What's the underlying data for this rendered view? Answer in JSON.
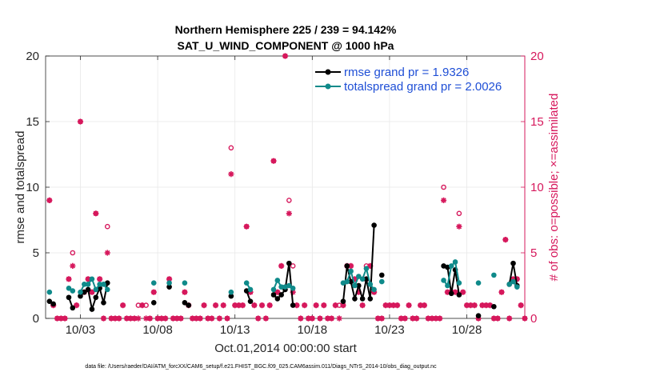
{
  "chart_data": {
    "type": "line",
    "title_line1": "Northern Hemisphere 225 / 239 = 94.142%",
    "title_line2": "SAT_U_WIND_COMPONENT @ 1000 hPa",
    "ylabel": "rmse and totalspread",
    "ylabel_right": "# of obs: o=possible; ×=assimilated",
    "xlabel": "Oct.01,2014 00:00:00 start",
    "footer": "data file: /Users/raeder/DAI/ATM_forcXX/CAM6_setup/f.e21.FHIST_BGC.f09_025.CAM6assim.011/Diags_NTrS_2014-10/obs_diag_output.nc",
    "xlim": [
      0.75,
      31.75
    ],
    "ylim": [
      0,
      20
    ],
    "ylim_right": [
      0,
      20
    ],
    "xticks": [
      3,
      8,
      13,
      18,
      23,
      28
    ],
    "xtick_labels": [
      "10/03",
      "10/08",
      "10/13",
      "10/18",
      "10/23",
      "10/28"
    ],
    "yticks": [
      0,
      5,
      10,
      15,
      20
    ],
    "ytick_labels": [
      "0",
      "5",
      "10",
      "15",
      "20"
    ],
    "ytick_labels_right": [
      "0",
      "5",
      "10",
      "15",
      "20"
    ],
    "colors": {
      "rmse": "#000000",
      "spread": "#0f8a8a",
      "obs": "#d6185c",
      "legend_text": "#1f4fd6",
      "grid": "#e8e8e8"
    },
    "series": [
      {
        "name": "rmse",
        "legend": "rmse grand pr = 1.9326",
        "segments": [
          [
            [
              1.0,
              1.3
            ],
            [
              1.25,
              1.1
            ]
          ],
          [
            [
              2.25,
              1.6
            ],
            [
              2.5,
              0.8
            ]
          ],
          [
            [
              3.0,
              1.7
            ],
            [
              3.25,
              2.0
            ],
            [
              3.5,
              2.2
            ],
            [
              3.75,
              0.7
            ],
            [
              4.0,
              1.6
            ],
            [
              4.25,
              2.3
            ],
            [
              4.5,
              1.2
            ],
            [
              4.75,
              2.7
            ]
          ],
          [
            [
              7.75,
              1.2
            ]
          ],
          [
            [
              8.75,
              2.4
            ]
          ],
          [
            [
              9.75,
              1.2
            ],
            [
              10.0,
              1.0
            ]
          ],
          [
            [
              12.75,
              1.7
            ]
          ],
          [
            [
              13.75,
              2.1
            ],
            [
              14.0,
              1.3
            ]
          ],
          [
            [
              15.5,
              1.8
            ],
            [
              15.75,
              1.5
            ],
            [
              16.0,
              1.8
            ],
            [
              16.25,
              2.2
            ],
            [
              16.5,
              4.2
            ],
            [
              16.75,
              1.0
            ]
          ],
          [
            [
              20.0,
              1.3
            ],
            [
              20.25,
              4.0
            ],
            [
              20.5,
              2.8
            ],
            [
              20.75,
              1.5
            ],
            [
              21.0,
              2.5
            ],
            [
              21.25,
              1.5
            ],
            [
              21.5,
              3.0
            ],
            [
              21.75,
              1.5
            ],
            [
              22.0,
              7.1
            ]
          ],
          [
            [
              22.5,
              3.3
            ]
          ],
          [
            [
              26.5,
              4.0
            ],
            [
              26.75,
              3.9
            ],
            [
              27.0,
              1.9
            ],
            [
              27.25,
              3.7
            ],
            [
              27.5,
              1.8
            ]
          ],
          [
            [
              28.75,
              0.2
            ]
          ],
          [
            [
              29.75,
              0.9
            ]
          ],
          [
            [
              30.75,
              2.6
            ],
            [
              31.0,
              4.2
            ],
            [
              31.25,
              2.5
            ]
          ]
        ]
      },
      {
        "name": "totalspread",
        "legend": "totalspread grand pr = 2.0026",
        "segments": [
          [
            [
              1.0,
              2.0
            ]
          ],
          [
            [
              2.25,
              2.3
            ],
            [
              2.5,
              2.1
            ]
          ],
          [
            [
              3.0,
              2.0
            ],
            [
              3.25,
              2.6
            ],
            [
              3.5,
              2.6
            ],
            [
              3.75,
              3.0
            ],
            [
              4.0,
              2.2
            ],
            [
              4.25,
              2.6
            ],
            [
              4.5,
              2.6
            ],
            [
              4.75,
              2.2
            ]
          ],
          [
            [
              7.75,
              2.7
            ]
          ],
          [
            [
              8.75,
              2.7
            ]
          ],
          [
            [
              9.75,
              2.7
            ]
          ],
          [
            [
              12.75,
              2.0
            ]
          ],
          [
            [
              13.75,
              2.7
            ],
            [
              14.0,
              2.2
            ]
          ],
          [
            [
              15.5,
              2.2
            ],
            [
              15.75,
              2.9
            ],
            [
              16.0,
              2.4
            ],
            [
              16.25,
              2.4
            ],
            [
              16.5,
              2.5
            ],
            [
              16.75,
              2.3
            ]
          ],
          [
            [
              20.0,
              2.7
            ],
            [
              20.25,
              2.8
            ],
            [
              20.5,
              3.6
            ],
            [
              20.75,
              2.5
            ],
            [
              21.0,
              3.2
            ],
            [
              21.25,
              3.0
            ],
            [
              21.5,
              3.8
            ],
            [
              21.75,
              2.6
            ],
            [
              22.0,
              2.2
            ]
          ],
          [
            [
              22.5,
              2.8
            ]
          ],
          [
            [
              26.5,
              2.9
            ],
            [
              26.75,
              2.5
            ],
            [
              27.0,
              4.0
            ],
            [
              27.25,
              4.3
            ],
            [
              27.5,
              2.7
            ]
          ],
          [
            [
              28.75,
              2.7
            ]
          ],
          [
            [
              29.75,
              3.3
            ]
          ],
          [
            [
              30.75,
              2.6
            ],
            [
              31.0,
              2.8
            ],
            [
              31.25,
              2.4
            ]
          ]
        ]
      }
    ],
    "possible": [
      [
        1.0,
        9.0
      ],
      [
        1.25,
        1.0
      ],
      [
        1.5,
        0.0
      ],
      [
        1.75,
        0.0
      ],
      [
        2.0,
        0.0
      ],
      [
        2.25,
        3.0
      ],
      [
        2.5,
        5.0
      ],
      [
        2.75,
        1.0
      ],
      [
        3.0,
        15.0
      ],
      [
        3.25,
        2.0
      ],
      [
        3.5,
        3.0
      ],
      [
        3.75,
        2.0
      ],
      [
        4.0,
        8.0
      ],
      [
        4.25,
        3.0
      ],
      [
        4.5,
        0.0
      ],
      [
        4.75,
        7.0
      ],
      [
        5.0,
        0.0
      ],
      [
        5.25,
        0.0
      ],
      [
        5.5,
        0.0
      ],
      [
        5.75,
        1.0
      ],
      [
        6.0,
        0.0
      ],
      [
        6.25,
        0.0
      ],
      [
        6.5,
        0.0
      ],
      [
        6.75,
        1.0
      ],
      [
        7.0,
        1.0
      ],
      [
        7.25,
        1.0
      ],
      [
        7.5,
        0.0
      ],
      [
        7.75,
        2.0
      ],
      [
        8.0,
        0.0
      ],
      [
        8.25,
        0.0
      ],
      [
        8.5,
        0.0
      ],
      [
        8.75,
        3.0
      ],
      [
        9.0,
        0.0
      ],
      [
        9.25,
        0.0
      ],
      [
        9.5,
        0.0
      ],
      [
        9.75,
        2.0
      ],
      [
        10.0,
        1.0
      ],
      [
        10.25,
        0.0
      ],
      [
        10.5,
        0.0
      ],
      [
        10.75,
        0.0
      ],
      [
        11.0,
        1.0
      ],
      [
        11.25,
        0.0
      ],
      [
        11.5,
        0.0
      ],
      [
        11.75,
        1.0
      ],
      [
        12.0,
        0.0
      ],
      [
        12.25,
        1.0
      ],
      [
        12.5,
        0.0
      ],
      [
        12.75,
        13.0
      ],
      [
        13.0,
        1.0
      ],
      [
        13.25,
        1.0
      ],
      [
        13.5,
        1.0
      ],
      [
        13.75,
        7.0
      ],
      [
        14.0,
        2.0
      ],
      [
        14.25,
        1.0
      ],
      [
        14.5,
        0.0
      ],
      [
        14.75,
        1.0
      ],
      [
        15.0,
        0.0
      ],
      [
        15.25,
        1.0
      ],
      [
        15.5,
        12.0
      ],
      [
        15.75,
        2.0
      ],
      [
        16.0,
        4.0
      ],
      [
        16.25,
        20.0
      ],
      [
        16.5,
        9.0
      ],
      [
        16.75,
        4.0
      ],
      [
        17.0,
        1.0
      ],
      [
        17.25,
        0.0
      ],
      [
        17.5,
        1.0
      ],
      [
        17.75,
        0.0
      ],
      [
        18.0,
        0.0
      ],
      [
        18.25,
        1.0
      ],
      [
        18.5,
        0.0
      ],
      [
        18.75,
        1.0
      ],
      [
        19.0,
        0.0
      ],
      [
        19.25,
        0.0
      ],
      [
        19.5,
        1.0
      ],
      [
        19.75,
        1.0
      ],
      [
        20.0,
        1.0
      ],
      [
        20.25,
        4.0
      ],
      [
        20.5,
        4.0
      ],
      [
        20.75,
        3.0
      ],
      [
        21.0,
        2.0
      ],
      [
        21.25,
        1.0
      ],
      [
        21.5,
        4.0
      ],
      [
        21.75,
        4.0
      ],
      [
        22.0,
        2.0
      ],
      [
        22.25,
        0.0
      ],
      [
        22.5,
        0.0
      ],
      [
        22.75,
        1.0
      ],
      [
        23.0,
        1.0
      ],
      [
        23.25,
        1.0
      ],
      [
        23.5,
        1.0
      ],
      [
        23.75,
        0.0
      ],
      [
        24.0,
        0.0
      ],
      [
        24.25,
        1.0
      ],
      [
        24.5,
        0.0
      ],
      [
        24.75,
        0.0
      ],
      [
        25.0,
        1.0
      ],
      [
        25.25,
        1.0
      ],
      [
        25.5,
        0.0
      ],
      [
        25.75,
        0.0
      ],
      [
        26.0,
        0.0
      ],
      [
        26.25,
        0.0
      ],
      [
        26.5,
        10.0
      ],
      [
        26.75,
        2.0
      ],
      [
        27.0,
        2.0
      ],
      [
        27.25,
        2.0
      ],
      [
        27.5,
        8.0
      ],
      [
        27.75,
        2.0
      ],
      [
        28.0,
        1.0
      ],
      [
        28.25,
        1.0
      ],
      [
        28.5,
        1.0
      ],
      [
        28.75,
        0.0
      ],
      [
        29.0,
        1.0
      ],
      [
        29.25,
        1.0
      ],
      [
        29.5,
        1.0
      ],
      [
        29.75,
        0.0
      ],
      [
        30.0,
        0.0
      ],
      [
        30.25,
        2.0
      ],
      [
        30.5,
        6.0
      ],
      [
        30.75,
        0.0
      ],
      [
        31.0,
        3.0
      ],
      [
        31.25,
        3.0
      ],
      [
        31.5,
        1.0
      ],
      [
        31.75,
        0.0
      ]
    ],
    "assimilated": [
      [
        1.0,
        9.0
      ],
      [
        1.25,
        1.0
      ],
      [
        1.5,
        0.0
      ],
      [
        1.75,
        0.0
      ],
      [
        2.0,
        0.0
      ],
      [
        2.25,
        3.0
      ],
      [
        2.5,
        4.0
      ],
      [
        2.75,
        1.0
      ],
      [
        3.0,
        15.0
      ],
      [
        3.25,
        2.0
      ],
      [
        3.5,
        3.0
      ],
      [
        3.75,
        2.0
      ],
      [
        4.0,
        8.0
      ],
      [
        4.25,
        3.0
      ],
      [
        4.5,
        0.0
      ],
      [
        4.75,
        5.0
      ],
      [
        5.0,
        0.0
      ],
      [
        5.25,
        0.0
      ],
      [
        5.5,
        0.0
      ],
      [
        5.75,
        1.0
      ],
      [
        6.0,
        0.0
      ],
      [
        6.25,
        0.0
      ],
      [
        6.5,
        0.0
      ],
      [
        6.75,
        0.0
      ],
      [
        7.0,
        1.0
      ],
      [
        7.25,
        0.0
      ],
      [
        7.5,
        0.0
      ],
      [
        7.75,
        2.0
      ],
      [
        8.0,
        0.0
      ],
      [
        8.25,
        0.0
      ],
      [
        8.5,
        0.0
      ],
      [
        8.75,
        3.0
      ],
      [
        9.0,
        0.0
      ],
      [
        9.25,
        0.0
      ],
      [
        9.5,
        0.0
      ],
      [
        9.75,
        2.0
      ],
      [
        10.0,
        1.0
      ],
      [
        10.25,
        0.0
      ],
      [
        10.5,
        0.0
      ],
      [
        10.75,
        0.0
      ],
      [
        11.0,
        1.0
      ],
      [
        11.25,
        0.0
      ],
      [
        11.5,
        0.0
      ],
      [
        11.75,
        1.0
      ],
      [
        12.0,
        0.0
      ],
      [
        12.25,
        1.0
      ],
      [
        12.5,
        0.0
      ],
      [
        12.75,
        11.0
      ],
      [
        13.0,
        1.0
      ],
      [
        13.25,
        1.0
      ],
      [
        13.5,
        1.0
      ],
      [
        13.75,
        7.0
      ],
      [
        14.0,
        2.0
      ],
      [
        14.25,
        1.0
      ],
      [
        14.5,
        0.0
      ],
      [
        14.75,
        1.0
      ],
      [
        15.0,
        0.0
      ],
      [
        15.25,
        1.0
      ],
      [
        15.5,
        12.0
      ],
      [
        15.75,
        2.0
      ],
      [
        16.0,
        4.0
      ],
      [
        16.25,
        20.0
      ],
      [
        16.5,
        8.0
      ],
      [
        16.75,
        2.0
      ],
      [
        17.0,
        1.0
      ],
      [
        17.25,
        0.0
      ],
      [
        17.5,
        1.0
      ],
      [
        17.75,
        0.0
      ],
      [
        18.0,
        0.0
      ],
      [
        18.25,
        1.0
      ],
      [
        18.5,
        0.0
      ],
      [
        18.75,
        1.0
      ],
      [
        19.0,
        0.0
      ],
      [
        19.25,
        0.0
      ],
      [
        19.5,
        1.0
      ],
      [
        19.75,
        0.0
      ],
      [
        20.0,
        1.0
      ],
      [
        20.25,
        4.0
      ],
      [
        20.5,
        4.0
      ],
      [
        20.75,
        3.0
      ],
      [
        21.0,
        2.0
      ],
      [
        21.25,
        1.0
      ],
      [
        21.5,
        3.0
      ],
      [
        21.75,
        4.0
      ],
      [
        22.0,
        2.0
      ],
      [
        22.25,
        0.0
      ],
      [
        22.5,
        0.0
      ],
      [
        22.75,
        1.0
      ],
      [
        23.0,
        1.0
      ],
      [
        23.25,
        1.0
      ],
      [
        23.5,
        1.0
      ],
      [
        23.75,
        0.0
      ],
      [
        24.0,
        0.0
      ],
      [
        24.25,
        1.0
      ],
      [
        24.5,
        0.0
      ],
      [
        24.75,
        0.0
      ],
      [
        25.0,
        1.0
      ],
      [
        25.25,
        1.0
      ],
      [
        25.5,
        0.0
      ],
      [
        25.75,
        0.0
      ],
      [
        26.0,
        0.0
      ],
      [
        26.25,
        0.0
      ],
      [
        26.5,
        9.0
      ],
      [
        26.75,
        2.0
      ],
      [
        27.0,
        2.0
      ],
      [
        27.25,
        2.0
      ],
      [
        27.5,
        7.0
      ],
      [
        27.75,
        2.0
      ],
      [
        28.0,
        1.0
      ],
      [
        28.25,
        1.0
      ],
      [
        28.5,
        1.0
      ],
      [
        28.75,
        0.0
      ],
      [
        29.0,
        1.0
      ],
      [
        29.25,
        1.0
      ],
      [
        29.5,
        1.0
      ],
      [
        29.75,
        0.0
      ],
      [
        30.0,
        0.0
      ],
      [
        30.25,
        2.0
      ],
      [
        30.5,
        6.0
      ],
      [
        30.75,
        0.0
      ],
      [
        31.0,
        3.0
      ],
      [
        31.25,
        3.0
      ],
      [
        31.5,
        1.0
      ],
      [
        31.75,
        0.0
      ]
    ]
  }
}
